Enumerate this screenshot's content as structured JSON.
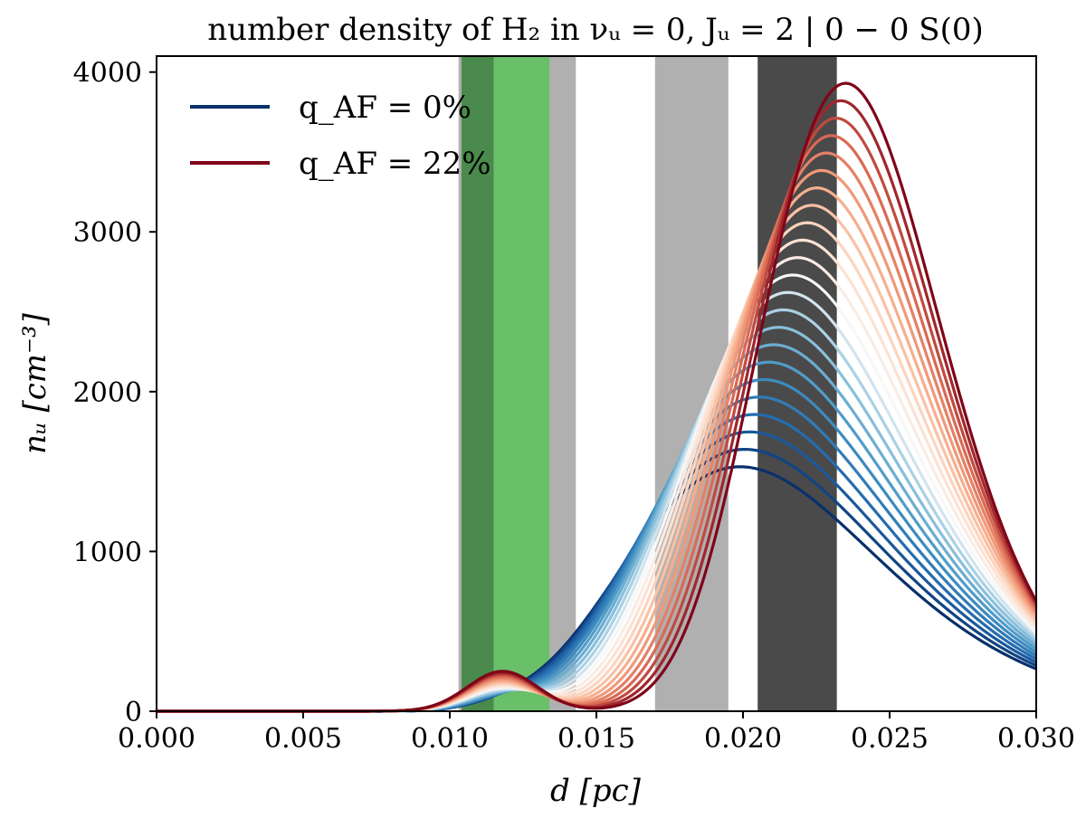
{
  "chart_data": {
    "type": "line",
    "title": "number density of H₂ in νᵤ = 0, Jᵤ = 2 | 0 − 0 S(0)",
    "xlabel": "d [pc]",
    "ylabel": "nᵤ [cm⁻³]",
    "xlim": [
      0.0,
      0.03
    ],
    "ylim": [
      0,
      4100
    ],
    "x_ticks": [
      "0.000",
      "0.005",
      "0.010",
      "0.015",
      "0.020",
      "0.025",
      "0.030"
    ],
    "x_tick_values": [
      0.0,
      0.005,
      0.01,
      0.015,
      0.02,
      0.025,
      0.03
    ],
    "y_ticks": [
      "0",
      "1000",
      "2000",
      "3000",
      "4000"
    ],
    "y_tick_values": [
      0,
      1000,
      2000,
      3000,
      4000
    ],
    "grid": false,
    "legend": {
      "placement": "top-left",
      "entries": [
        {
          "label": "q_AF = 0%",
          "color": "#08306b"
        },
        {
          "label": "q_AF = 22%",
          "color": "#7f0519"
        }
      ]
    },
    "colormap": "RdBu_r",
    "shaded_bands": [
      {
        "name": "grey-band-1",
        "x_start": 0.0103,
        "x_end": 0.0143,
        "color": "#b0b0b0"
      },
      {
        "name": "dark-green-band",
        "x_start": 0.0104,
        "x_end": 0.0115,
        "color": "#4a8a4c"
      },
      {
        "name": "green-band",
        "x_start": 0.0115,
        "x_end": 0.0134,
        "color": "#6abf69"
      },
      {
        "name": "grey-band-2",
        "x_start": 0.017,
        "x_end": 0.0195,
        "color": "#b0b0b0"
      },
      {
        "name": "dark-grey-band",
        "x_start": 0.0205,
        "x_end": 0.0232,
        "color": "#4a4a4a"
      }
    ],
    "curve_model": "log-normal",
    "series": [
      {
        "name": "q_AF = 0%",
        "q": 0,
        "peak_x": 0.0199,
        "peak_y": 1530,
        "value_at_0.030": 265
      },
      {
        "name": "q_AF = 22%",
        "q": 22,
        "peak_x": 0.0235,
        "peak_y": 3930,
        "value_at_0.030": 690
      }
    ],
    "n_curves": 23
  }
}
